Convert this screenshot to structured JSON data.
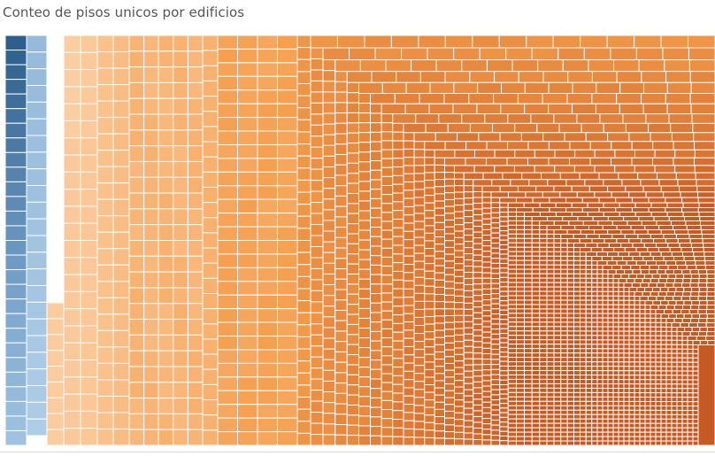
{
  "title": "Conteo de pisos unicos por edificios",
  "chart_data": {
    "type": "treemap",
    "title": "Conteo de pisos unicos por edificios",
    "color_scale": "diverging blue-orange",
    "colors": {
      "blue_dark": "#2c5f8c",
      "blue_mid": "#7fa9cf",
      "blue_light": "#c7e1f4",
      "orange_light": "#fdd9b5",
      "orange_mid": "#f59c4a",
      "orange_dark": "#c65a22",
      "divider": "#ffffff"
    },
    "groups": [
      {
        "color_value": -1.0,
        "cell_count": 28,
        "layout": "column"
      },
      {
        "color_value": -0.35,
        "cell_count": 24,
        "layout": "column"
      },
      {
        "color_value": 0.12,
        "cell_count": 17,
        "layout": "column"
      },
      {
        "color_value": 0.16,
        "cell_count": 24,
        "layout": "column"
      },
      {
        "color_value": 0.22,
        "cell_count": 25,
        "layout": "column"
      },
      {
        "color_value": 0.3,
        "cell_count": 27,
        "layout": "grid"
      },
      {
        "color_value": 0.45,
        "cell_count": 26,
        "layout": "grid"
      },
      {
        "color_value": 0.6,
        "cell_count": 33,
        "layout": "grid"
      },
      {
        "color_value": 0.75,
        "cell_count": 40,
        "layout": "spiral"
      },
      {
        "color_value": 1.0,
        "cell_count": 45,
        "layout": "spiral"
      }
    ]
  }
}
